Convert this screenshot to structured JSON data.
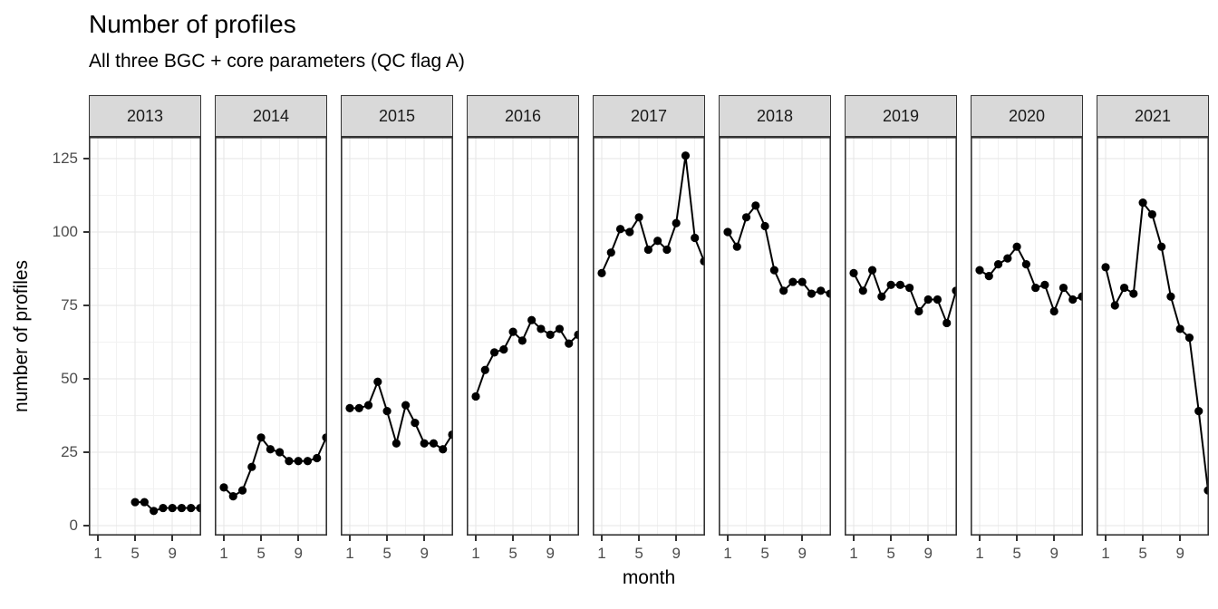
{
  "title": "Number of profiles",
  "subtitle": "All three BGC + core parameters (QC flag A)",
  "chart_data": {
    "type": "line",
    "title": "Number of profiles",
    "subtitle": "All three BGC + core parameters (QC flag A)",
    "xlabel": "month",
    "ylabel": "number of profiles",
    "facet_variable": "year",
    "facets": [
      "2013",
      "2014",
      "2015",
      "2016",
      "2017",
      "2018",
      "2019",
      "2020",
      "2021"
    ],
    "months": [
      1,
      2,
      3,
      4,
      5,
      6,
      7,
      8,
      9,
      10,
      11,
      12
    ],
    "x_ticks": [
      1,
      5,
      9
    ],
    "x_minor_ticks": [
      3,
      7,
      11
    ],
    "y_ticks": [
      0,
      25,
      50,
      75,
      100,
      125
    ],
    "y_minor_ticks": [
      12.5,
      37.5,
      62.5,
      87.5,
      112.5
    ],
    "ylim": [
      0,
      125
    ],
    "grid": "on",
    "legend": "none",
    "marker": "filled-circle",
    "series": [
      {
        "name": "2013",
        "values": [
          null,
          null,
          null,
          null,
          8,
          8,
          5,
          6,
          6,
          6,
          6,
          6
        ]
      },
      {
        "name": "2014",
        "values": [
          13,
          10,
          12,
          20,
          30,
          26,
          25,
          22,
          22,
          22,
          23,
          30
        ]
      },
      {
        "name": "2015",
        "values": [
          40,
          40,
          41,
          49,
          39,
          28,
          41,
          35,
          28,
          28,
          26,
          31
        ]
      },
      {
        "name": "2016",
        "values": [
          44,
          53,
          59,
          60,
          66,
          63,
          70,
          67,
          65,
          67,
          62,
          65
        ]
      },
      {
        "name": "2017",
        "values": [
          86,
          93,
          101,
          100,
          105,
          94,
          97,
          94,
          103,
          126,
          98,
          90
        ]
      },
      {
        "name": "2018",
        "values": [
          100,
          95,
          105,
          109,
          102,
          87,
          80,
          83,
          83,
          79,
          80,
          79
        ]
      },
      {
        "name": "2019",
        "values": [
          86,
          80,
          87,
          78,
          82,
          82,
          81,
          73,
          77,
          77,
          69,
          80
        ]
      },
      {
        "name": "2020",
        "values": [
          87,
          85,
          89,
          91,
          95,
          89,
          81,
          82,
          73,
          81,
          77,
          78
        ]
      },
      {
        "name": "2021",
        "values": [
          88,
          75,
          81,
          79,
          110,
          106,
          95,
          78,
          67,
          64,
          39,
          12
        ]
      }
    ]
  },
  "colors": {
    "background": "#ffffff",
    "series": "#000000",
    "strip_fill": "#d9d9d9",
    "strip_border": "#333333",
    "panel_border": "#333333",
    "grid_major": "#e5e5e5",
    "grid_minor": "#f2f2f2",
    "axis_text": "#4d4d4d",
    "tick_mark": "#333333",
    "title_text": "#000000"
  }
}
